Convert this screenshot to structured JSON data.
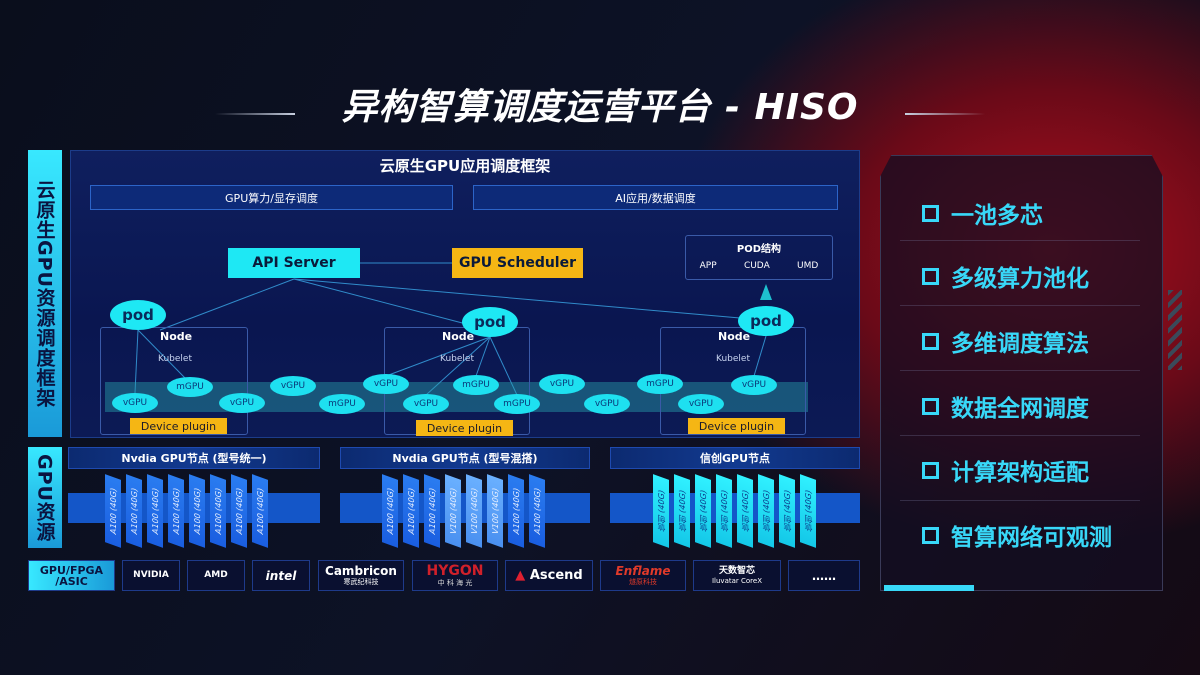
{
  "title": "异构智算调度运营平台 - HISO",
  "left_labels": {
    "framework": "云原生GPU资源调度框架",
    "resources": "GPU资源",
    "chips": "GPU/FPGA /ASIC"
  },
  "framework": {
    "header": "云原生GPU应用调度框架",
    "sub": [
      "GPU算力/显存调度",
      "AI应用/数据调度"
    ],
    "api_server": "API Server",
    "gpu_scheduler": "GPU Scheduler",
    "pod_struct": {
      "title": "POD结构",
      "items": [
        "APP",
        "CUDA",
        "UMD"
      ]
    },
    "pod": "pod",
    "node": "Node",
    "kubelet": "Kubelet",
    "device_plugin": "Device plugin",
    "units": [
      "vGPU",
      "mGPU",
      "vGPU",
      "vGPU",
      "mGPU",
      "vGPU",
      "vGPU",
      "mGPU",
      "mGPU",
      "vGPU",
      "vGPU",
      "mGPU",
      "vGPU",
      "vGPU"
    ]
  },
  "gpu_nodes": [
    {
      "title": "Nvdia GPU节点 (型号统一)",
      "chips": [
        "A100 (40G)",
        "A100 (40G)",
        "A100 (40G)",
        "A100 (40G)",
        "A100 (40G)",
        "A100 (40G)",
        "A100 (40G)",
        "A100 (40G)"
      ]
    },
    {
      "title": "Nvdia GPU节点 (型号混搭)",
      "chips": [
        "A100 (40G)",
        "A100 (40G)",
        "A100 (40G)",
        "V100 (40G)",
        "V100 (40G)",
        "V100 (40G)",
        "A100 (40G)",
        "A100 (40G)"
      ]
    },
    {
      "title": "信创GPU节点",
      "chips": [
        "信创 (40G)",
        "信创 (40G)",
        "信创 (40G)",
        "信创 (40G)",
        "信创 (40G)",
        "信创 (40G)",
        "信创 (40G)",
        "信创 (40G)"
      ]
    }
  ],
  "vendors": [
    {
      "name": "NVIDIA"
    },
    {
      "name": "AMD"
    },
    {
      "name": "intel"
    },
    {
      "name": "Cambricon",
      "sub": "寒武纪科技"
    },
    {
      "name": "HYGON",
      "sub": "中 科 海 光"
    },
    {
      "name": "Ascend"
    },
    {
      "name": "Enflame",
      "sub": "燧原科技"
    },
    {
      "name": "天数智芯",
      "sub": "Iluvatar CoreX"
    },
    {
      "name": "……"
    }
  ],
  "features": [
    "一池多芯",
    "多级算力池化",
    "多维调度算法",
    "数据全网调度",
    "计算架构适配",
    "智算网络可观测"
  ],
  "colors": {
    "cyan": "#1ee0f0",
    "orange": "#f5b614",
    "accent": "#38d8f8",
    "red": "#b0101e"
  }
}
